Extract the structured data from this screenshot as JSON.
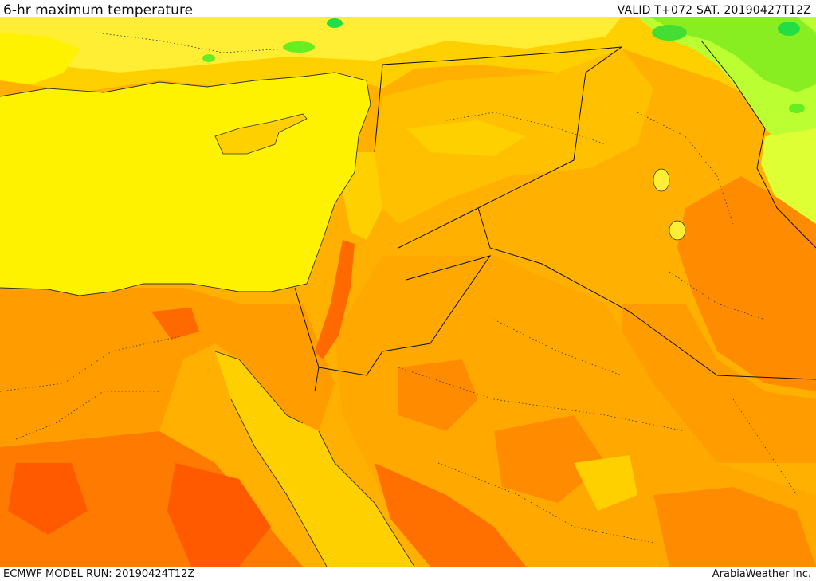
{
  "header": {
    "title": "6-hr maximum temperature",
    "valid": "VALID T+072 SAT. 20190427T12Z"
  },
  "footer": {
    "model_run": "ECMWF MODEL RUN: 20190424T12Z",
    "credit": "ArabiaWeather Inc."
  },
  "palette": {
    "sea": "#fff200",
    "pale_yellow": "#ffee33",
    "light_orange": "#ffd000",
    "orange": "#ffb000",
    "dark_orange": "#ff8c00",
    "red_orange": "#ff5a00",
    "green": "#66ee22",
    "bright_green": "#22dd44",
    "coast": "#333333",
    "border": "#111111"
  }
}
